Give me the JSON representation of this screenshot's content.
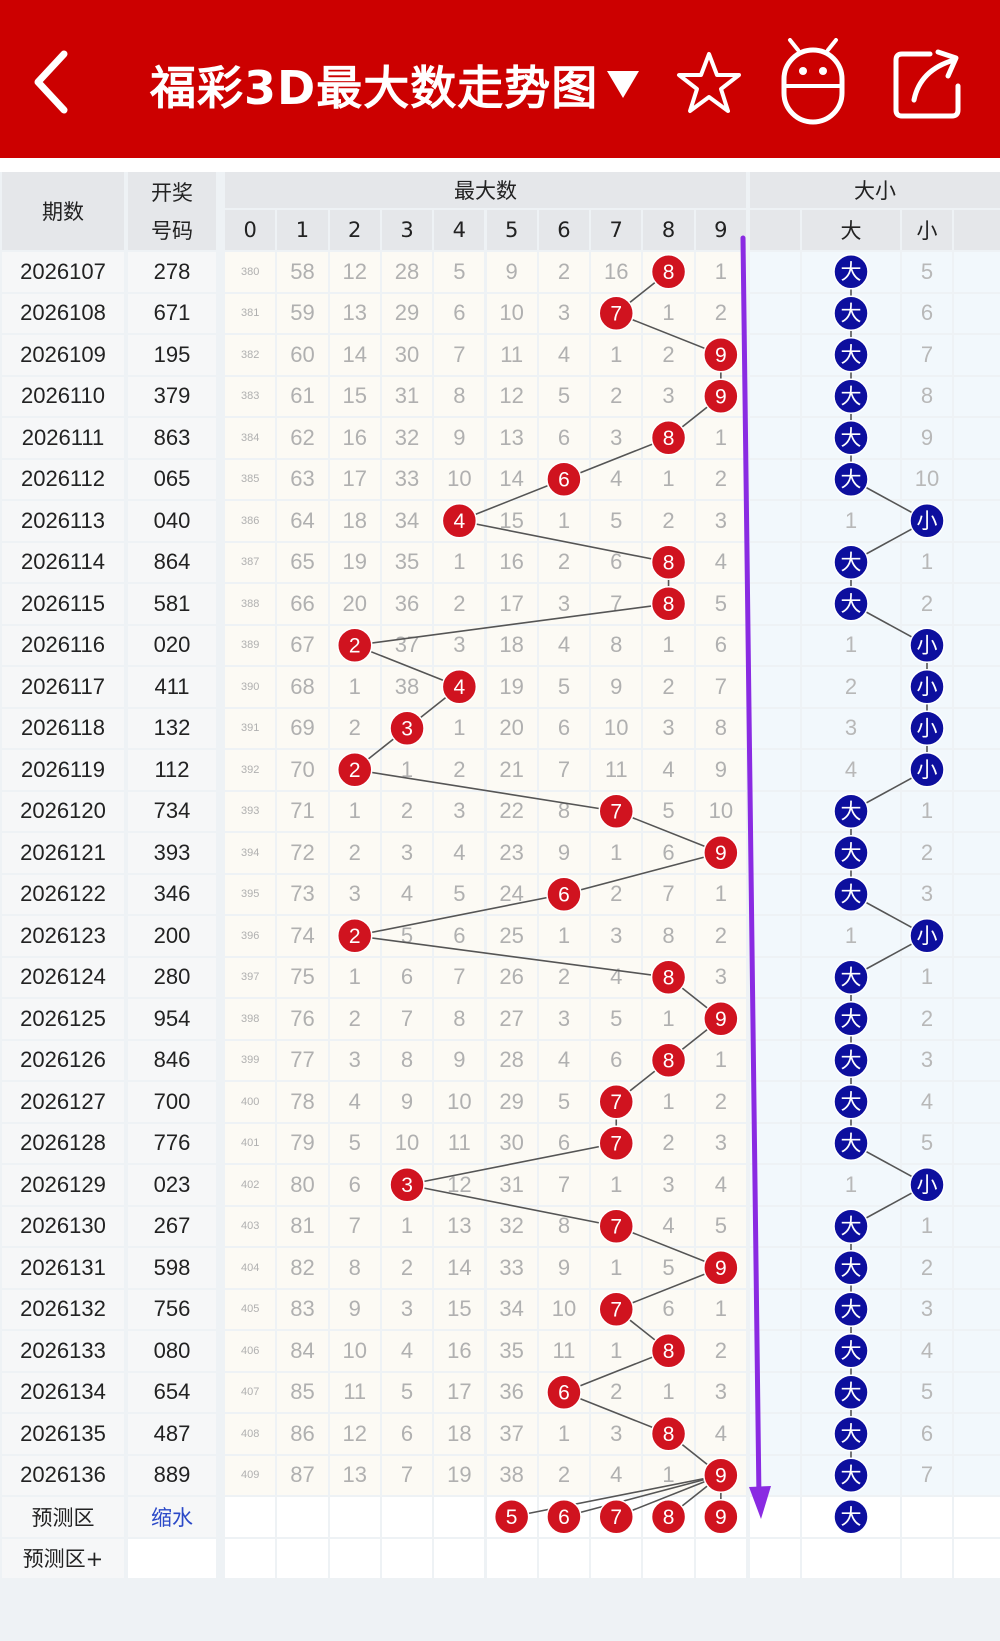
{
  "header": {
    "title": "福彩3D最大数走势图",
    "dropdown_icon": "triangle-down-icon",
    "left_icon": "back-arrow-icon",
    "right_icons": [
      "star-icon",
      "robot-icon",
      "share-icon"
    ],
    "bg_color": "#cc0000"
  },
  "table": {
    "col_period": "期数",
    "col_draw_line1": "开奖",
    "col_draw_line2": "号码",
    "group_max": "最大数",
    "digits": [
      "0",
      "1",
      "2",
      "3",
      "4",
      "5",
      "6",
      "7",
      "8",
      "9"
    ],
    "group_bs": "大小",
    "big_label": "大",
    "small_label": "小",
    "hit_color_red": "#d0131f",
    "hit_color_blue": "#0d0f9e",
    "rows": [
      {
        "period": "2026107",
        "draw": "278",
        "max": 8,
        "bs": "big",
        "omit": [
          "380",
          "58",
          "12",
          "28",
          "5",
          "9",
          "2",
          "16",
          "",
          "1"
        ],
        "bs_omit": [
          "",
          "5"
        ]
      },
      {
        "period": "2026108",
        "draw": "671",
        "max": 7,
        "bs": "big",
        "omit": [
          "381",
          "59",
          "13",
          "29",
          "6",
          "10",
          "3",
          "",
          "1",
          "2"
        ],
        "bs_omit": [
          "",
          "6"
        ]
      },
      {
        "period": "2026109",
        "draw": "195",
        "max": 9,
        "bs": "big",
        "omit": [
          "382",
          "60",
          "14",
          "30",
          "7",
          "11",
          "4",
          "1",
          "2",
          ""
        ],
        "bs_omit": [
          "",
          "7"
        ]
      },
      {
        "period": "2026110",
        "draw": "379",
        "max": 9,
        "bs": "big",
        "omit": [
          "383",
          "61",
          "15",
          "31",
          "8",
          "12",
          "5",
          "2",
          "3",
          ""
        ],
        "bs_omit": [
          "",
          "8"
        ]
      },
      {
        "period": "2026111",
        "draw": "863",
        "max": 8,
        "bs": "big",
        "omit": [
          "384",
          "62",
          "16",
          "32",
          "9",
          "13",
          "6",
          "3",
          "",
          "1"
        ],
        "bs_omit": [
          "",
          "9"
        ]
      },
      {
        "period": "2026112",
        "draw": "065",
        "max": 6,
        "bs": "big",
        "omit": [
          "385",
          "63",
          "17",
          "33",
          "10",
          "14",
          "",
          "4",
          "1",
          "2"
        ],
        "bs_omit": [
          "",
          "10"
        ]
      },
      {
        "period": "2026113",
        "draw": "040",
        "max": 4,
        "bs": "small",
        "omit": [
          "386",
          "64",
          "18",
          "34",
          "",
          "15",
          "1",
          "5",
          "2",
          "3"
        ],
        "bs_omit": [
          "1",
          ""
        ]
      },
      {
        "period": "2026114",
        "draw": "864",
        "max": 8,
        "bs": "big",
        "omit": [
          "387",
          "65",
          "19",
          "35",
          "1",
          "16",
          "2",
          "6",
          "",
          "4"
        ],
        "bs_omit": [
          "",
          "1"
        ]
      },
      {
        "period": "2026115",
        "draw": "581",
        "max": 8,
        "bs": "big",
        "omit": [
          "388",
          "66",
          "20",
          "36",
          "2",
          "17",
          "3",
          "7",
          "",
          "5"
        ],
        "bs_omit": [
          "",
          "2"
        ]
      },
      {
        "period": "2026116",
        "draw": "020",
        "max": 2,
        "bs": "small",
        "omit": [
          "389",
          "67",
          "",
          "37",
          "3",
          "18",
          "4",
          "8",
          "1",
          "6"
        ],
        "bs_omit": [
          "1",
          ""
        ]
      },
      {
        "period": "2026117",
        "draw": "411",
        "max": 4,
        "bs": "small",
        "omit": [
          "390",
          "68",
          "1",
          "38",
          "",
          "19",
          "5",
          "9",
          "2",
          "7"
        ],
        "bs_omit": [
          "2",
          ""
        ]
      },
      {
        "period": "2026118",
        "draw": "132",
        "max": 3,
        "bs": "small",
        "omit": [
          "391",
          "69",
          "2",
          "",
          "1",
          "20",
          "6",
          "10",
          "3",
          "8"
        ],
        "bs_omit": [
          "3",
          ""
        ]
      },
      {
        "period": "2026119",
        "draw": "112",
        "max": 2,
        "bs": "small",
        "omit": [
          "392",
          "70",
          "",
          "1",
          "2",
          "21",
          "7",
          "11",
          "4",
          "9"
        ],
        "bs_omit": [
          "4",
          ""
        ]
      },
      {
        "period": "2026120",
        "draw": "734",
        "max": 7,
        "bs": "big",
        "omit": [
          "393",
          "71",
          "1",
          "2",
          "3",
          "22",
          "8",
          "",
          "5",
          "10"
        ],
        "bs_omit": [
          "",
          "1"
        ]
      },
      {
        "period": "2026121",
        "draw": "393",
        "max": 9,
        "bs": "big",
        "omit": [
          "394",
          "72",
          "2",
          "3",
          "4",
          "23",
          "9",
          "1",
          "6",
          ""
        ],
        "bs_omit": [
          "",
          "2"
        ]
      },
      {
        "period": "2026122",
        "draw": "346",
        "max": 6,
        "bs": "big",
        "omit": [
          "395",
          "73",
          "3",
          "4",
          "5",
          "24",
          "",
          "2",
          "7",
          "1"
        ],
        "bs_omit": [
          "",
          "3"
        ]
      },
      {
        "period": "2026123",
        "draw": "200",
        "max": 2,
        "bs": "small",
        "omit": [
          "396",
          "74",
          "",
          "5",
          "6",
          "25",
          "1",
          "3",
          "8",
          "2"
        ],
        "bs_omit": [
          "1",
          ""
        ]
      },
      {
        "period": "2026124",
        "draw": "280",
        "max": 8,
        "bs": "big",
        "omit": [
          "397",
          "75",
          "1",
          "6",
          "7",
          "26",
          "2",
          "4",
          "",
          "3"
        ],
        "bs_omit": [
          "",
          "1"
        ]
      },
      {
        "period": "2026125",
        "draw": "954",
        "max": 9,
        "bs": "big",
        "omit": [
          "398",
          "76",
          "2",
          "7",
          "8",
          "27",
          "3",
          "5",
          "1",
          ""
        ],
        "bs_omit": [
          "",
          "2"
        ]
      },
      {
        "period": "2026126",
        "draw": "846",
        "max": 8,
        "bs": "big",
        "omit": [
          "399",
          "77",
          "3",
          "8",
          "9",
          "28",
          "4",
          "6",
          "",
          "1"
        ],
        "bs_omit": [
          "",
          "3"
        ]
      },
      {
        "period": "2026127",
        "draw": "700",
        "max": 7,
        "bs": "big",
        "omit": [
          "400",
          "78",
          "4",
          "9",
          "10",
          "29",
          "5",
          "",
          "1",
          "2"
        ],
        "bs_omit": [
          "",
          "4"
        ]
      },
      {
        "period": "2026128",
        "draw": "776",
        "max": 7,
        "bs": "big",
        "omit": [
          "401",
          "79",
          "5",
          "10",
          "11",
          "30",
          "6",
          "",
          "2",
          "3"
        ],
        "bs_omit": [
          "",
          "5"
        ]
      },
      {
        "period": "2026129",
        "draw": "023",
        "max": 3,
        "bs": "small",
        "omit": [
          "402",
          "80",
          "6",
          "",
          "12",
          "31",
          "7",
          "1",
          "3",
          "4"
        ],
        "bs_omit": [
          "1",
          ""
        ]
      },
      {
        "period": "2026130",
        "draw": "267",
        "max": 7,
        "bs": "big",
        "omit": [
          "403",
          "81",
          "7",
          "1",
          "13",
          "32",
          "8",
          "",
          "4",
          "5"
        ],
        "bs_omit": [
          "",
          "1"
        ]
      },
      {
        "period": "2026131",
        "draw": "598",
        "max": 9,
        "bs": "big",
        "omit": [
          "404",
          "82",
          "8",
          "2",
          "14",
          "33",
          "9",
          "1",
          "5",
          ""
        ],
        "bs_omit": [
          "",
          "2"
        ]
      },
      {
        "period": "2026132",
        "draw": "756",
        "max": 7,
        "bs": "big",
        "omit": [
          "405",
          "83",
          "9",
          "3",
          "15",
          "34",
          "10",
          "",
          "6",
          "1"
        ],
        "bs_omit": [
          "",
          "3"
        ]
      },
      {
        "period": "2026133",
        "draw": "080",
        "max": 8,
        "bs": "big",
        "omit": [
          "406",
          "84",
          "10",
          "4",
          "16",
          "35",
          "11",
          "1",
          "",
          "2"
        ],
        "bs_omit": [
          "",
          "4"
        ]
      },
      {
        "period": "2026134",
        "draw": "654",
        "max": 6,
        "bs": "big",
        "omit": [
          "407",
          "85",
          "11",
          "5",
          "17",
          "36",
          "",
          "2",
          "1",
          "3"
        ],
        "bs_omit": [
          "",
          "5"
        ]
      },
      {
        "period": "2026135",
        "draw": "487",
        "max": 8,
        "bs": "big",
        "omit": [
          "408",
          "86",
          "12",
          "6",
          "18",
          "37",
          "1",
          "3",
          "",
          "4"
        ],
        "bs_omit": [
          "",
          "6"
        ]
      },
      {
        "period": "2026136",
        "draw": "889",
        "max": 9,
        "bs": "big",
        "omit": [
          "409",
          "87",
          "13",
          "7",
          "19",
          "38",
          "2",
          "4",
          "1",
          ""
        ],
        "bs_omit": [
          "",
          "7"
        ]
      }
    ],
    "forecast": {
      "label": "预测区",
      "link": "缩水",
      "digits": [
        "5",
        "6",
        "7",
        "8",
        "9"
      ],
      "bs": "大"
    },
    "forecast2_label": "预测区+",
    "arrow_color": "#8a2be2"
  }
}
